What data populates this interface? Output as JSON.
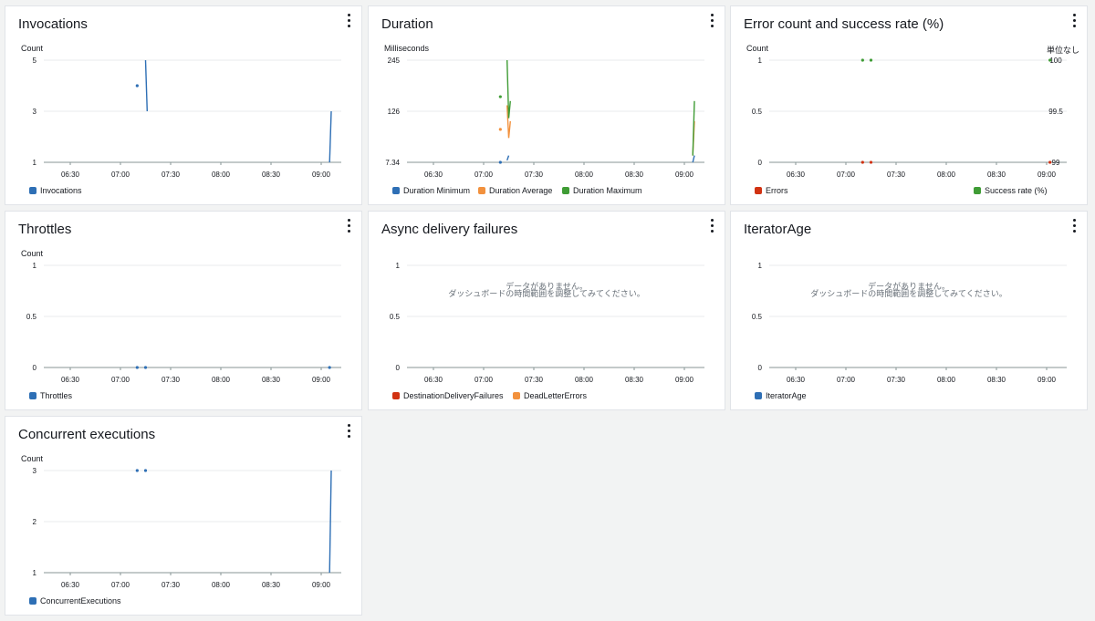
{
  "dashboard": {
    "xticks": [
      "06:30",
      "07:00",
      "07:30",
      "08:00",
      "08:30",
      "09:00"
    ]
  },
  "panels": [
    {
      "id": "invocations",
      "title": "Invocations",
      "ylabel": "Count",
      "legend": [
        {
          "name": "Invocations",
          "color": "#2e6fb5"
        }
      ]
    },
    {
      "id": "duration",
      "title": "Duration",
      "ylabel": "Milliseconds",
      "legend": [
        {
          "name": "Duration Minimum",
          "color": "#2e6fb5"
        },
        {
          "name": "Duration Average",
          "color": "#f2913d"
        },
        {
          "name": "Duration Maximum",
          "color": "#3f9c35"
        }
      ]
    },
    {
      "id": "error-count-success-rate",
      "title": "Error count and success rate (%)",
      "ylabel": "Count",
      "ylabel_right": "単位なし",
      "legend": [
        {
          "name": "Errors",
          "color": "#d13212"
        },
        {
          "name": "Success rate (%)",
          "color": "#3f9c35"
        }
      ]
    },
    {
      "id": "throttles",
      "title": "Throttles",
      "ylabel": "Count",
      "legend": [
        {
          "name": "Throttles",
          "color": "#2e6fb5"
        }
      ]
    },
    {
      "id": "async-delivery-failures",
      "title": "Async delivery failures",
      "no_data": [
        "データがありません。",
        "ダッシュボードの時間範囲を調整してみてください。"
      ],
      "legend": [
        {
          "name": "DestinationDeliveryFailures",
          "color": "#d13212"
        },
        {
          "name": "DeadLetterErrors",
          "color": "#f2913d"
        }
      ]
    },
    {
      "id": "iterator-age",
      "title": "IteratorAge",
      "no_data": [
        "データがありません。",
        "ダッシュボードの時間範囲を調整してみてください。"
      ],
      "legend": [
        {
          "name": "IteratorAge",
          "color": "#2e6fb5"
        }
      ]
    },
    {
      "id": "concurrent-executions",
      "title": "Concurrent executions",
      "ylabel": "Count",
      "legend": [
        {
          "name": "ConcurrentExecutions",
          "color": "#2e6fb5"
        }
      ]
    }
  ],
  "chart_data": [
    {
      "type": "line",
      "title": "Invocations",
      "ylabel": "Count",
      "x": [
        "06:30",
        "07:00",
        "07:30",
        "08:00",
        "08:30",
        "09:00"
      ],
      "x_range": [
        "06:12",
        "09:12"
      ],
      "yticks": [
        "1",
        "3",
        "5"
      ],
      "ylim": [
        1,
        5
      ],
      "grid": true,
      "legend_position": "bottom",
      "series": [
        {
          "name": "Invocations",
          "color": "#2e6fb5",
          "points": [
            [
              "07:10",
              4
            ],
            [
              "07:15",
              5
            ],
            [
              "07:16",
              3
            ],
            [
              "09:05",
              1
            ],
            [
              "09:06",
              3
            ]
          ],
          "segments": [
            [
              0,
              0
            ],
            [
              1,
              2
            ],
            [
              3,
              4
            ]
          ]
        }
      ]
    },
    {
      "type": "line",
      "title": "Duration",
      "ylabel": "Milliseconds",
      "x": [
        "06:30",
        "07:00",
        "07:30",
        "08:00",
        "08:30",
        "09:00"
      ],
      "x_range": [
        "06:12",
        "09:12"
      ],
      "yticks": [
        "7.34",
        "126",
        "245"
      ],
      "ylim": [
        7.34,
        245
      ],
      "grid": true,
      "legend_position": "bottom",
      "series": [
        {
          "name": "Duration Minimum",
          "color": "#2e6fb5",
          "points": [
            [
              "07:10",
              7.34
            ],
            [
              "07:14",
              12
            ],
            [
              "07:15",
              23
            ],
            [
              "09:05",
              7.34
            ],
            [
              "09:06",
              23
            ]
          ],
          "segments": [
            [
              0,
              0
            ],
            [
              1,
              2
            ],
            [
              3,
              4
            ]
          ]
        },
        {
          "name": "Duration Average",
          "color": "#f2913d",
          "points": [
            [
              "07:10",
              84
            ],
            [
              "07:14",
              140
            ],
            [
              "07:15",
              64
            ],
            [
              "07:16",
              103
            ],
            [
              "09:05",
              23
            ],
            [
              "09:06",
              103
            ]
          ],
          "segments": [
            [
              0,
              0
            ],
            [
              1,
              3
            ],
            [
              4,
              5
            ]
          ]
        },
        {
          "name": "Duration Maximum",
          "color": "#3f9c35",
          "points": [
            [
              "07:10",
              160
            ],
            [
              "07:14",
              245
            ],
            [
              "07:15",
              110
            ],
            [
              "07:16",
              150
            ],
            [
              "09:05",
              23
            ],
            [
              "09:06",
              150
            ]
          ],
          "segments": [
            [
              0,
              0
            ],
            [
              1,
              3
            ],
            [
              4,
              5
            ]
          ]
        }
      ]
    },
    {
      "type": "line",
      "title": "Error count and success rate (%)",
      "ylabel": "Count",
      "ylabel_right": "単位なし",
      "x": [
        "06:30",
        "07:00",
        "07:30",
        "08:00",
        "08:30",
        "09:00"
      ],
      "x_range": [
        "06:12",
        "09:12"
      ],
      "yticks": [
        "0",
        "0.5",
        "1"
      ],
      "ylim": [
        0,
        1
      ],
      "yticks_right": [
        "99",
        "99.5",
        "100"
      ],
      "ylim_right": [
        99,
        100
      ],
      "grid": true,
      "legend_position": "bottom",
      "series": [
        {
          "name": "Errors",
          "color": "#d13212",
          "axis": "left",
          "points": [
            [
              "07:10",
              0
            ],
            [
              "07:15",
              0
            ],
            [
              "09:02",
              0
            ]
          ],
          "segments": [
            [
              0,
              0
            ],
            [
              1,
              1
            ],
            [
              2,
              2
            ]
          ]
        },
        {
          "name": "Success rate (%)",
          "color": "#3f9c35",
          "axis": "right",
          "points": [
            [
              "07:10",
              100
            ],
            [
              "07:15",
              100
            ],
            [
              "09:02",
              100
            ]
          ],
          "segments": [
            [
              0,
              0
            ],
            [
              1,
              1
            ],
            [
              2,
              2
            ]
          ]
        }
      ]
    },
    {
      "type": "line",
      "title": "Throttles",
      "ylabel": "Count",
      "x": [
        "06:30",
        "07:00",
        "07:30",
        "08:00",
        "08:30",
        "09:00"
      ],
      "x_range": [
        "06:12",
        "09:12"
      ],
      "yticks": [
        "0",
        "0.5",
        "1"
      ],
      "ylim": [
        0,
        1
      ],
      "grid": true,
      "legend_position": "bottom",
      "series": [
        {
          "name": "Throttles",
          "color": "#2e6fb5",
          "points": [
            [
              "07:10",
              0
            ],
            [
              "07:15",
              0
            ],
            [
              "09:05",
              0
            ]
          ],
          "segments": [
            [
              0,
              0
            ],
            [
              1,
              1
            ],
            [
              2,
              2
            ]
          ]
        }
      ]
    },
    {
      "type": "line",
      "title": "Async delivery failures",
      "x": [
        "06:30",
        "07:00",
        "07:30",
        "08:00",
        "08:30",
        "09:00"
      ],
      "x_range": [
        "06:12",
        "09:12"
      ],
      "yticks": [
        "0",
        "0.5",
        "1"
      ],
      "ylim": [
        0,
        1
      ],
      "grid": true,
      "legend_position": "bottom",
      "series": [
        {
          "name": "DestinationDeliveryFailures",
          "color": "#d13212",
          "points": [],
          "segments": []
        },
        {
          "name": "DeadLetterErrors",
          "color": "#f2913d",
          "points": [],
          "segments": []
        }
      ]
    },
    {
      "type": "line",
      "title": "IteratorAge",
      "x": [
        "06:30",
        "07:00",
        "07:30",
        "08:00",
        "08:30",
        "09:00"
      ],
      "x_range": [
        "06:12",
        "09:12"
      ],
      "yticks": [
        "0",
        "0.5",
        "1"
      ],
      "ylim": [
        0,
        1
      ],
      "grid": true,
      "legend_position": "bottom",
      "series": [
        {
          "name": "IteratorAge",
          "color": "#2e6fb5",
          "points": [],
          "segments": []
        }
      ]
    },
    {
      "type": "line",
      "title": "Concurrent executions",
      "ylabel": "Count",
      "x": [
        "06:30",
        "07:00",
        "07:30",
        "08:00",
        "08:30",
        "09:00"
      ],
      "x_range": [
        "06:12",
        "09:12"
      ],
      "yticks": [
        "1",
        "2",
        "3"
      ],
      "ylim": [
        1,
        3
      ],
      "grid": true,
      "legend_position": "bottom",
      "series": [
        {
          "name": "ConcurrentExecutions",
          "color": "#2e6fb5",
          "points": [
            [
              "07:10",
              3
            ],
            [
              "07:15",
              3
            ],
            [
              "09:05",
              1
            ],
            [
              "09:06",
              3
            ]
          ],
          "segments": [
            [
              0,
              0
            ],
            [
              1,
              1
            ],
            [
              2,
              3
            ]
          ]
        }
      ]
    }
  ]
}
